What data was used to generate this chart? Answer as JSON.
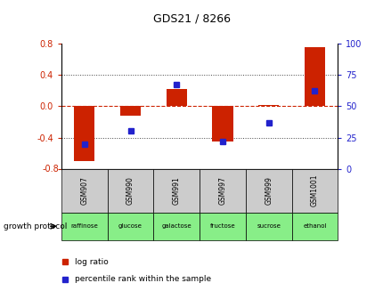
{
  "title": "GDS21 / 8266",
  "samples": [
    "GSM907",
    "GSM990",
    "GSM991",
    "GSM997",
    "GSM999",
    "GSM1001"
  ],
  "protocols": [
    "raffinose",
    "glucose",
    "galactose",
    "fructose",
    "sucrose",
    "ethanol"
  ],
  "log_ratios": [
    -0.7,
    -0.12,
    0.22,
    -0.45,
    0.02,
    0.76
  ],
  "percentile_ranks": [
    20,
    30,
    67,
    22,
    37,
    62
  ],
  "ylim_left": [
    -0.8,
    0.8
  ],
  "ylim_right": [
    0,
    100
  ],
  "yticks_left": [
    -0.8,
    -0.4,
    0.0,
    0.4,
    0.8
  ],
  "yticks_right": [
    0,
    25,
    50,
    75,
    100
  ],
  "bar_color": "#cc2200",
  "dot_color": "#2222cc",
  "grid_color": "#444444",
  "zero_line_color": "#cc2200",
  "bg_color": "#ffffff",
  "protocol_bg": "#88ee88",
  "sample_bg": "#cccccc",
  "bar_width": 0.45,
  "title_fontsize": 9,
  "tick_fontsize": 7,
  "label_fontsize": 6.5
}
